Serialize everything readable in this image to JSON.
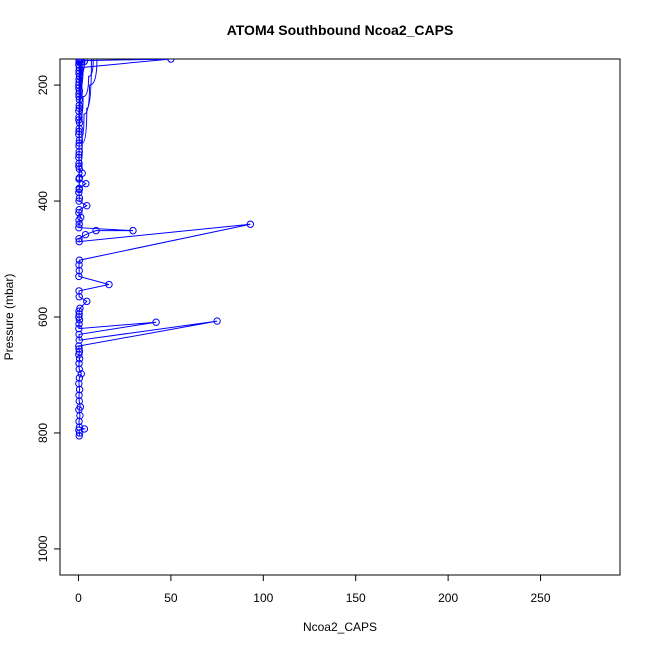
{
  "chart_data": {
    "type": "line",
    "title": "ATOM4 Southbound Ncoa2_CAPS",
    "xlabel": "Ncoa2_CAPS",
    "ylabel": "Pressure (mbar)",
    "xlim": [
      -10,
      293
    ],
    "ylim": [
      1045,
      155
    ],
    "y_inverted": true,
    "grid": false,
    "x_ticks": [
      0,
      50,
      100,
      150,
      200,
      250
    ],
    "y_ticks": [
      200,
      400,
      600,
      800,
      1000
    ],
    "x_tick_labels": [
      "0",
      "50",
      "100",
      "150",
      "200",
      "250"
    ],
    "y_tick_labels": [
      "200",
      "400",
      "600",
      "800",
      "1000"
    ],
    "series": [
      {
        "color": "#0000ff",
        "markers": "open-circle",
        "points": [
          [
            0.4,
            805
          ],
          [
            0.6,
            800
          ],
          [
            0.2,
            795
          ],
          [
            3.2,
            793
          ],
          [
            0.5,
            790
          ],
          [
            0.3,
            780
          ],
          [
            0.8,
            770
          ],
          [
            0.2,
            760
          ],
          [
            1.0,
            755
          ],
          [
            0.4,
            745
          ],
          [
            0.3,
            735
          ],
          [
            0.6,
            725
          ],
          [
            0.2,
            715
          ],
          [
            0.5,
            705
          ],
          [
            1.5,
            698
          ],
          [
            0.4,
            690
          ],
          [
            0.3,
            680
          ],
          [
            0.6,
            672
          ],
          [
            0.2,
            665
          ],
          [
            0.5,
            660
          ],
          [
            0.3,
            655
          ],
          [
            0.2,
            650
          ],
          [
            75.0,
            607
          ],
          [
            0.4,
            640
          ],
          [
            0.3,
            630
          ],
          [
            42.0,
            609
          ],
          [
            0.2,
            620
          ],
          [
            0.3,
            612
          ],
          [
            0.5,
            605
          ],
          [
            0.2,
            600
          ],
          [
            0.4,
            595
          ],
          [
            0.3,
            590
          ],
          [
            0.8,
            585
          ],
          [
            4.5,
            573
          ],
          [
            0.4,
            565
          ],
          [
            0.3,
            555
          ],
          [
            16.5,
            544
          ],
          [
            0.2,
            530
          ],
          [
            0.4,
            520
          ],
          [
            0.3,
            510
          ],
          [
            0.5,
            502
          ],
          [
            93.0,
            440
          ],
          [
            0.4,
            470
          ],
          [
            0.3,
            465
          ],
          [
            3.8,
            458
          ],
          [
            9.5,
            451
          ],
          [
            29.5,
            451
          ],
          [
            0.2,
            446
          ],
          [
            0.4,
            440
          ],
          [
            0.3,
            433
          ],
          [
            1.2,
            428
          ],
          [
            0.2,
            420
          ],
          [
            0.4,
            415
          ],
          [
            4.5,
            408
          ],
          [
            0.3,
            400
          ],
          [
            0.5,
            395
          ],
          [
            0.2,
            385
          ],
          [
            0.4,
            378
          ],
          [
            4.0,
            370
          ],
          [
            0.3,
            362
          ],
          [
            2.0,
            352
          ],
          [
            0.5,
            345
          ],
          [
            0.3,
            335
          ],
          [
            0.2,
            325
          ],
          [
            0.4,
            315
          ],
          [
            0.3,
            305
          ],
          [
            0.5,
            295
          ],
          [
            0.2,
            285
          ],
          [
            0.4,
            275
          ],
          [
            0.6,
            265
          ],
          [
            0.3,
            255
          ],
          [
            0.2,
            245
          ],
          [
            0.4,
            235
          ],
          [
            0.5,
            225
          ],
          [
            0.3,
            215
          ],
          [
            0.2,
            205
          ],
          [
            0.4,
            195
          ],
          [
            0.6,
            185
          ],
          [
            0.3,
            175
          ],
          [
            0.2,
            165
          ],
          [
            0.4,
            158
          ],
          [
            50.0,
            155
          ],
          [
            0.5,
            170
          ],
          [
            0.3,
            180
          ],
          [
            0.4,
            160
          ],
          [
            0.3,
            190
          ],
          [
            0.2,
            200
          ],
          [
            0.5,
            210
          ],
          [
            1.0,
            158
          ],
          [
            0.3,
            220
          ],
          [
            0.4,
            240
          ],
          [
            0.2,
            260
          ],
          [
            0.3,
            280
          ],
          [
            1.5,
            160
          ],
          [
            0.4,
            300
          ],
          [
            0.3,
            320
          ],
          [
            0.2,
            340
          ],
          [
            0.5,
            360
          ],
          [
            0.4,
            380
          ],
          [
            0.3,
            160
          ]
        ]
      }
    ],
    "curves": [
      [
        [
          0.5,
          200
        ],
        [
          1.5,
          180
        ],
        [
          3.0,
          165
        ],
        [
          5.0,
          155
        ]
      ],
      [
        [
          0.4,
          260
        ],
        [
          2.5,
          220
        ],
        [
          5.5,
          185
        ],
        [
          8.0,
          155
        ]
      ],
      [
        [
          0.3,
          300
        ],
        [
          3.0,
          250
        ],
        [
          6.0,
          200
        ],
        [
          10.0,
          155
        ]
      ],
      [
        [
          0.5,
          340
        ],
        [
          2.0,
          300
        ],
        [
          4.5,
          240
        ],
        [
          7.0,
          155
        ]
      ],
      [
        [
          0.3,
          170
        ],
        [
          1.0,
          160
        ],
        [
          2.0,
          155
        ]
      ],
      [
        [
          0.4,
          230
        ],
        [
          1.2,
          200
        ],
        [
          2.5,
          170
        ],
        [
          3.5,
          155
        ]
      ]
    ]
  }
}
